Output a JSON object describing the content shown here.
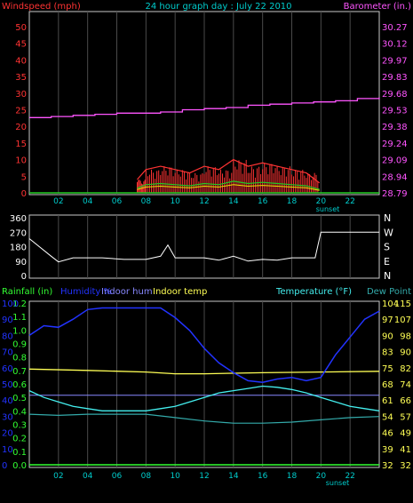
{
  "colors": {
    "background": "#000000",
    "panel_border": "#c8c8c8",
    "grid": "#4a4a4a",
    "windspeed": "#ff3333",
    "barometer": "#ff55ff",
    "wind_avg": "#e6e600",
    "gust_green": "#22cc22",
    "direction": "#ffffff",
    "rainfall": "#33ff33",
    "humidity": "#2233ff",
    "indoor_hum": "#8888ff",
    "indoor_temp": "#ffff55",
    "temperature": "#44eeee",
    "dew_point": "#33aaaa",
    "time_axis": "#00cccc"
  },
  "top_panel": {
    "title": "24 hour graph day : July 22 2010",
    "left_label": "Windspeed (mph)",
    "right_label": "Barometer (in.)",
    "left_ticks": [
      "50",
      "45",
      "40",
      "35",
      "30",
      "25",
      "20",
      "15",
      "10",
      "5",
      "0"
    ],
    "right_ticks": [
      "30.27",
      "30.12",
      "29.97",
      "29.83",
      "29.68",
      "29.53",
      "29.38",
      "29.24",
      "29.09",
      "28.94",
      "28.79"
    ],
    "x_ticks": [
      "02",
      "04",
      "06",
      "08",
      "10",
      "12",
      "14",
      "16",
      "18",
      "20",
      "22"
    ],
    "sunset_label": "sunset"
  },
  "mid_panel": {
    "left_ticks": [
      "360",
      "270",
      "180",
      "90",
      "0"
    ],
    "right_ticks": [
      "N",
      "W",
      "S",
      "E",
      "N"
    ]
  },
  "bottom_panel": {
    "legend_rain": "Rainfall (in)",
    "legend_humidity": "Humidity %",
    "legend_indoor_hum": "Indoor hum",
    "legend_indoor_temp": "Indoor temp",
    "legend_temperature": "Temperature (°F)",
    "legend_dew": "Dew Point",
    "rain_ticks": [
      "1.2",
      "1.1",
      "1.0",
      "0.9",
      "0.8",
      "0.7",
      "0.6",
      "0.5",
      "0.4",
      "0.3",
      "0.2",
      "0.1",
      "0.0"
    ],
    "hum_ticks": [
      "100",
      "90",
      "80",
      "70",
      "60",
      "50",
      "40",
      "30",
      "20",
      "10",
      "0"
    ],
    "temp_ticks_a": [
      "104",
      "97",
      "90",
      "83",
      "75",
      "68",
      "61",
      "54",
      "46",
      "39",
      "32"
    ],
    "temp_ticks_b": [
      "115",
      "107",
      "98",
      "90",
      "82",
      "74",
      "66",
      "57",
      "49",
      "41",
      "32"
    ],
    "x_ticks": [
      "02",
      "04",
      "06",
      "08",
      "10",
      "12",
      "14",
      "16",
      "18",
      "20",
      "22"
    ],
    "sunset_label": "sunset"
  },
  "chart_data": [
    {
      "type": "line",
      "title": "24 hour graph day : July 22 2010",
      "x_unit": "hour",
      "xlim": [
        0,
        24
      ],
      "ylabel": "Windspeed (mph)",
      "ylim": [
        0,
        50
      ],
      "y2label": "Barometer (in.)",
      "y2lim": [
        28.79,
        30.27
      ],
      "series": [
        {
          "name": "Windspeed (mph)",
          "x": [
            7.4,
            8.0,
            9.0,
            10.0,
            11.0,
            12.0,
            13.0,
            14.0,
            15.0,
            16.0,
            17.0,
            18.0,
            19.0,
            19.9
          ],
          "y": [
            4,
            7,
            8,
            7,
            6,
            8,
            7,
            10,
            8,
            9,
            8,
            7,
            6,
            3
          ]
        },
        {
          "name": "Barometer (in.)",
          "x": [
            0,
            1.5,
            3.0,
            4.5,
            6.0,
            7.5,
            9.0,
            10.5,
            12.0,
            13.5,
            15.0,
            16.5,
            18.0,
            19.5,
            21.0,
            22.5,
            24.0
          ],
          "y": [
            29.46,
            29.47,
            29.48,
            29.49,
            29.5,
            29.5,
            29.51,
            29.53,
            29.54,
            29.55,
            29.57,
            29.58,
            29.59,
            29.6,
            29.61,
            29.63,
            29.64
          ]
        }
      ]
    },
    {
      "type": "line",
      "title": "",
      "x_unit": "hour",
      "xlim": [
        0,
        24
      ],
      "ylim": [
        0,
        360
      ],
      "series": [
        {
          "name": "",
          "x": [
            0,
            1.5,
            2.0,
            3.0,
            5.0,
            6.5,
            8.0,
            9.0,
            9.5,
            10.0,
            12.0,
            13.0,
            14.0,
            15.0,
            16.0,
            17.0,
            18.0,
            19.0,
            19.6,
            20.0,
            24.0
          ],
          "y": [
            230,
            120,
            85,
            110,
            110,
            100,
            100,
            120,
            190,
            110,
            110,
            95,
            120,
            90,
            100,
            95,
            110,
            110,
            110,
            270,
            270
          ]
        }
      ]
    },
    {
      "type": "line",
      "title": "",
      "x_unit": "hour",
      "xlim": [
        0,
        24
      ],
      "ylabel": "Humidity %",
      "ylim": [
        0,
        100
      ],
      "y2label": "Temperature (°F)",
      "y2lim": [
        32,
        104
      ],
      "series": [
        {
          "name": "Humidity %",
          "x": [
            0,
            1,
            2,
            3,
            4,
            5,
            6,
            7,
            8,
            9,
            10,
            11,
            12,
            13,
            14,
            15,
            16,
            17,
            18,
            19,
            20,
            21,
            22,
            23,
            24
          ],
          "y": [
            80,
            86,
            85,
            90,
            96,
            97,
            97,
            97,
            97,
            97,
            91,
            83,
            72,
            63,
            57,
            52,
            51,
            53,
            54,
            52,
            54,
            68,
            79,
            90,
            95
          ]
        },
        {
          "name": "Indoor hum",
          "x": [
            0,
            6,
            12,
            18,
            24
          ],
          "y": [
            43,
            43,
            43,
            43,
            43
          ]
        },
        {
          "name": "Indoor temp",
          "x": [
            0,
            4,
            8,
            10,
            12,
            16,
            20,
            24
          ],
          "y": [
            74.6,
            74.0,
            73.3,
            72.5,
            72.5,
            73.0,
            73.3,
            73.6
          ]
        },
        {
          "name": "Temperature (°F)",
          "x": [
            0,
            1,
            2,
            3,
            4,
            5,
            6,
            7,
            8,
            9,
            10,
            11,
            12,
            13,
            14,
            15,
            16,
            17,
            18,
            19,
            20,
            21,
            22,
            23,
            24
          ],
          "y": [
            65,
            62,
            60,
            58,
            57,
            56,
            56,
            56,
            56,
            57,
            58,
            60,
            62,
            64,
            65,
            66,
            67,
            66.5,
            65.5,
            64,
            62,
            60,
            58,
            57,
            56
          ]
        },
        {
          "name": "Dew Point",
          "x": [
            0,
            2,
            4,
            6,
            8,
            10,
            12,
            14,
            16,
            18,
            20,
            22,
            24
          ],
          "y": [
            54.5,
            54,
            54.5,
            54.5,
            54.5,
            53,
            51.5,
            50.5,
            50.5,
            51,
            52,
            53,
            53.5
          ]
        }
      ]
    }
  ]
}
